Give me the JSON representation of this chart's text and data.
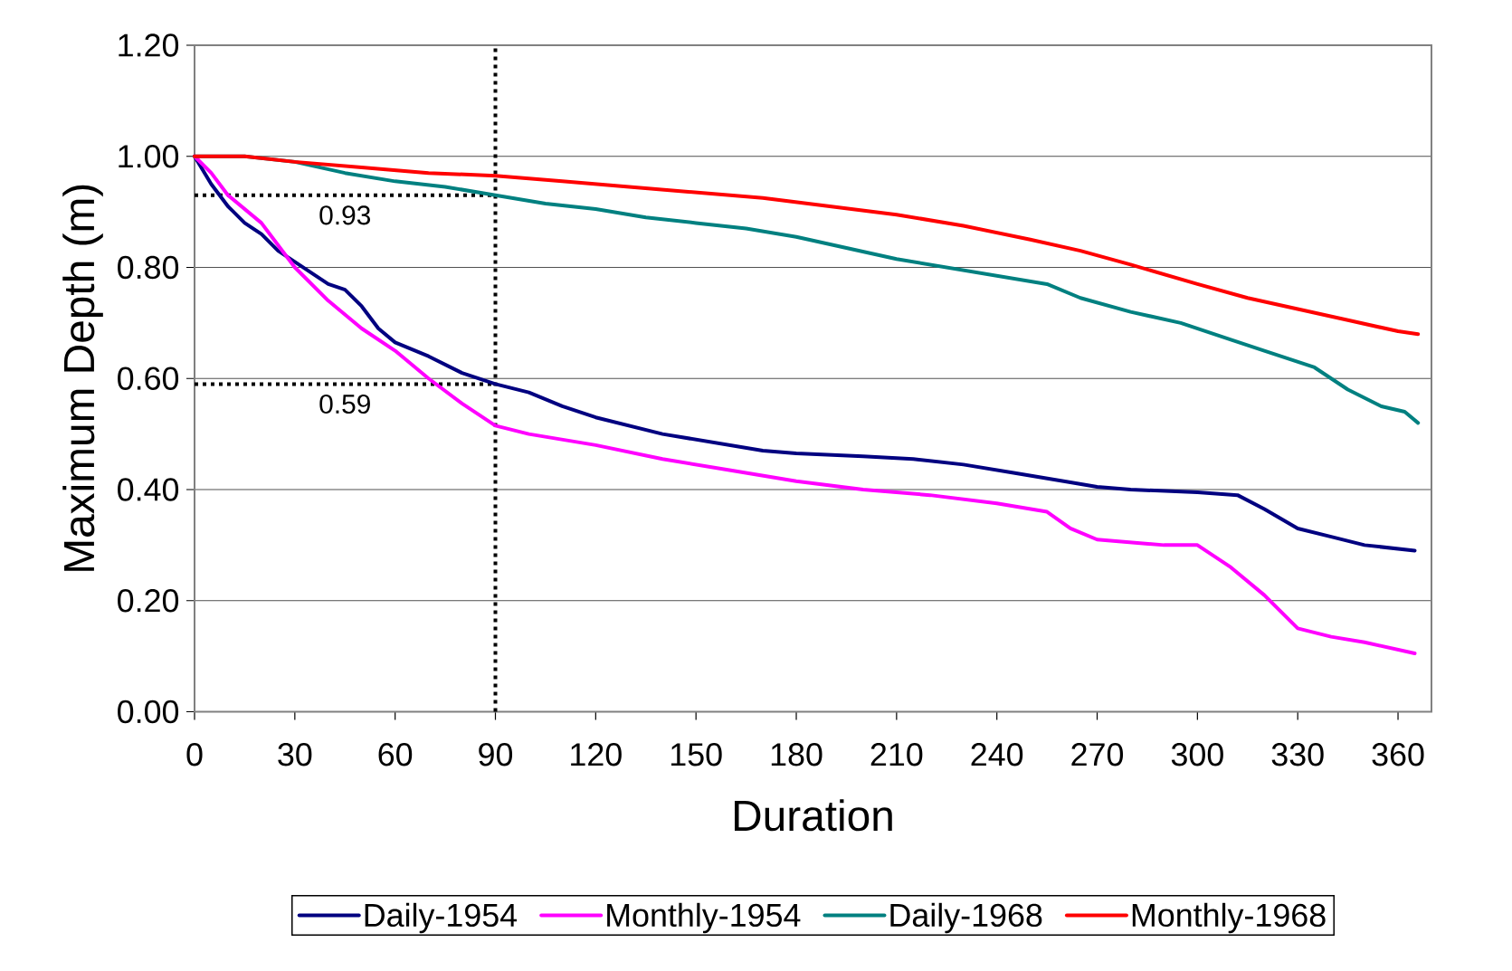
{
  "chart_data": {
    "type": "line",
    "xlabel": "Duration",
    "ylabel": "Maximum Depth (m)",
    "xlim": [
      0,
      370
    ],
    "xticks": [
      0,
      30,
      60,
      90,
      120,
      150,
      180,
      210,
      240,
      270,
      300,
      330,
      360
    ],
    "ylim": [
      0,
      1.2
    ],
    "yticks": [
      {
        "value": 0,
        "label": "0.00"
      },
      {
        "value": 0.2,
        "label": "0.20"
      },
      {
        "value": 0.4,
        "label": "0.40"
      },
      {
        "value": 0.6,
        "label": "0.60"
      },
      {
        "value": 0.8,
        "label": "0.80"
      },
      {
        "value": 1.0,
        "label": "1.00"
      },
      {
        "value": 1.2,
        "label": "1.20"
      }
    ],
    "grid": "y",
    "legend": "bottom",
    "line_style": "solid",
    "marker": "none",
    "ref_lines": [
      {
        "axis": "y",
        "value": 0.93,
        "label": "0.93",
        "line_style": "dotted",
        "color": "#000000"
      },
      {
        "axis": "y",
        "value": 0.59,
        "label": "0.59",
        "line_style": "dotted",
        "color": "#000000"
      },
      {
        "axis": "x",
        "value": 90,
        "line_style": "dotted",
        "color": "#000000"
      }
    ],
    "series": [
      {
        "name": "Daily-1954",
        "color": "#000080",
        "x": [
          0,
          5,
          10,
          15,
          20,
          25,
          30,
          40,
          45,
          50,
          55,
          60,
          70,
          80,
          90,
          100,
          110,
          120,
          130,
          140,
          150,
          160,
          170,
          180,
          200,
          215,
          230,
          245,
          260,
          270,
          280,
          300,
          312,
          320,
          330,
          340,
          350,
          365
        ],
        "values": [
          1.0,
          0.95,
          0.91,
          0.88,
          0.86,
          0.83,
          0.81,
          0.77,
          0.76,
          0.73,
          0.69,
          0.665,
          0.64,
          0.61,
          0.59,
          0.575,
          0.55,
          0.53,
          0.515,
          0.5,
          0.49,
          0.48,
          0.47,
          0.465,
          0.46,
          0.455,
          0.445,
          0.43,
          0.415,
          0.405,
          0.4,
          0.395,
          0.39,
          0.365,
          0.33,
          0.315,
          0.3,
          0.29
        ]
      },
      {
        "name": "Monthly-1954",
        "color": "#ff00ff",
        "x": [
          0,
          5,
          10,
          20,
          30,
          40,
          50,
          60,
          70,
          80,
          90,
          100,
          120,
          140,
          160,
          180,
          200,
          220,
          240,
          255,
          262,
          270,
          290,
          300,
          310,
          320,
          330,
          340,
          350,
          365
        ],
        "values": [
          1.0,
          0.97,
          0.93,
          0.88,
          0.8,
          0.74,
          0.69,
          0.65,
          0.6,
          0.555,
          0.515,
          0.5,
          0.48,
          0.455,
          0.435,
          0.415,
          0.4,
          0.39,
          0.375,
          0.36,
          0.33,
          0.31,
          0.3,
          0.3,
          0.26,
          0.21,
          0.15,
          0.135,
          0.125,
          0.105
        ]
      },
      {
        "name": "Daily-1968",
        "color": "#008080",
        "x": [
          0,
          15,
          30,
          45,
          60,
          75,
          90,
          105,
          120,
          135,
          150,
          165,
          180,
          195,
          210,
          225,
          240,
          255,
          265,
          280,
          295,
          310,
          320,
          335,
          345,
          355,
          362,
          366
        ],
        "values": [
          1.0,
          1.0,
          0.99,
          0.97,
          0.955,
          0.945,
          0.93,
          0.915,
          0.905,
          0.89,
          0.88,
          0.87,
          0.855,
          0.835,
          0.815,
          0.8,
          0.785,
          0.77,
          0.745,
          0.72,
          0.7,
          0.67,
          0.65,
          0.62,
          0.58,
          0.55,
          0.54,
          0.52
        ]
      },
      {
        "name": "Monthly-1968",
        "color": "#ff0000",
        "x": [
          0,
          15,
          30,
          50,
          70,
          90,
          110,
          130,
          150,
          170,
          190,
          210,
          230,
          250,
          265,
          280,
          300,
          315,
          330,
          345,
          360,
          366
        ],
        "values": [
          1.0,
          1.0,
          0.99,
          0.98,
          0.97,
          0.965,
          0.955,
          0.945,
          0.935,
          0.925,
          0.91,
          0.895,
          0.875,
          0.85,
          0.83,
          0.805,
          0.77,
          0.745,
          0.725,
          0.705,
          0.685,
          0.68
        ]
      }
    ]
  }
}
